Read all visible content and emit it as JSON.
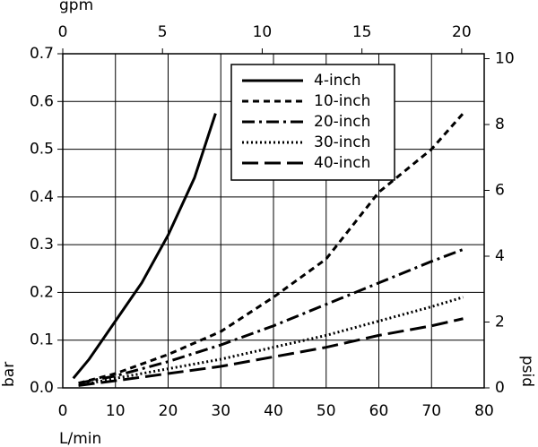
{
  "chart_data": {
    "type": "line",
    "xlabel": "L/min",
    "x2label": "gpm",
    "ylabel": "bar",
    "y2label": "psid",
    "xlim": [
      0,
      80
    ],
    "xticks": [
      0,
      10,
      20,
      30,
      40,
      50,
      60,
      70,
      80
    ],
    "x2lim": [
      0,
      21.13
    ],
    "x2ticks": [
      0,
      5,
      10,
      15,
      20
    ],
    "ylim": [
      0,
      0.7
    ],
    "yticks": [
      0.0,
      0.1,
      0.2,
      0.3,
      0.4,
      0.5,
      0.6,
      0.7
    ],
    "y2lim": [
      0,
      10.15
    ],
    "y2ticks": [
      0,
      2,
      4,
      6,
      8,
      10
    ],
    "grid": true,
    "series": [
      {
        "name": "4-inch",
        "color": "#000000",
        "dash": "none",
        "x": [
          2,
          5,
          10,
          15,
          20,
          25,
          29
        ],
        "values": [
          0.02,
          0.06,
          0.14,
          0.22,
          0.32,
          0.44,
          0.575
        ]
      },
      {
        "name": "10-inch",
        "color": "#000000",
        "dash": "7 5",
        "x": [
          3,
          10,
          20,
          30,
          40,
          50,
          60,
          70,
          76
        ],
        "values": [
          0.01,
          0.03,
          0.07,
          0.118,
          0.19,
          0.27,
          0.41,
          0.5,
          0.575
        ]
      },
      {
        "name": "20-inch",
        "color": "#000000",
        "dash": "14 5 3 5",
        "x": [
          3,
          10,
          20,
          30,
          40,
          50,
          60,
          70,
          76
        ],
        "values": [
          0.01,
          0.025,
          0.055,
          0.09,
          0.13,
          0.175,
          0.22,
          0.265,
          0.29
        ]
      },
      {
        "name": "30-inch",
        "color": "#000000",
        "dash": "2 3",
        "x": [
          3,
          10,
          20,
          30,
          40,
          50,
          60,
          70,
          76
        ],
        "values": [
          0.005,
          0.02,
          0.04,
          0.06,
          0.085,
          0.11,
          0.14,
          0.17,
          0.19
        ]
      },
      {
        "name": "40-inch",
        "color": "#000000",
        "dash": "18 7",
        "x": [
          3,
          10,
          20,
          30,
          40,
          50,
          60,
          70,
          76
        ],
        "values": [
          0.005,
          0.015,
          0.03,
          0.045,
          0.065,
          0.085,
          0.11,
          0.13,
          0.145
        ]
      }
    ]
  }
}
